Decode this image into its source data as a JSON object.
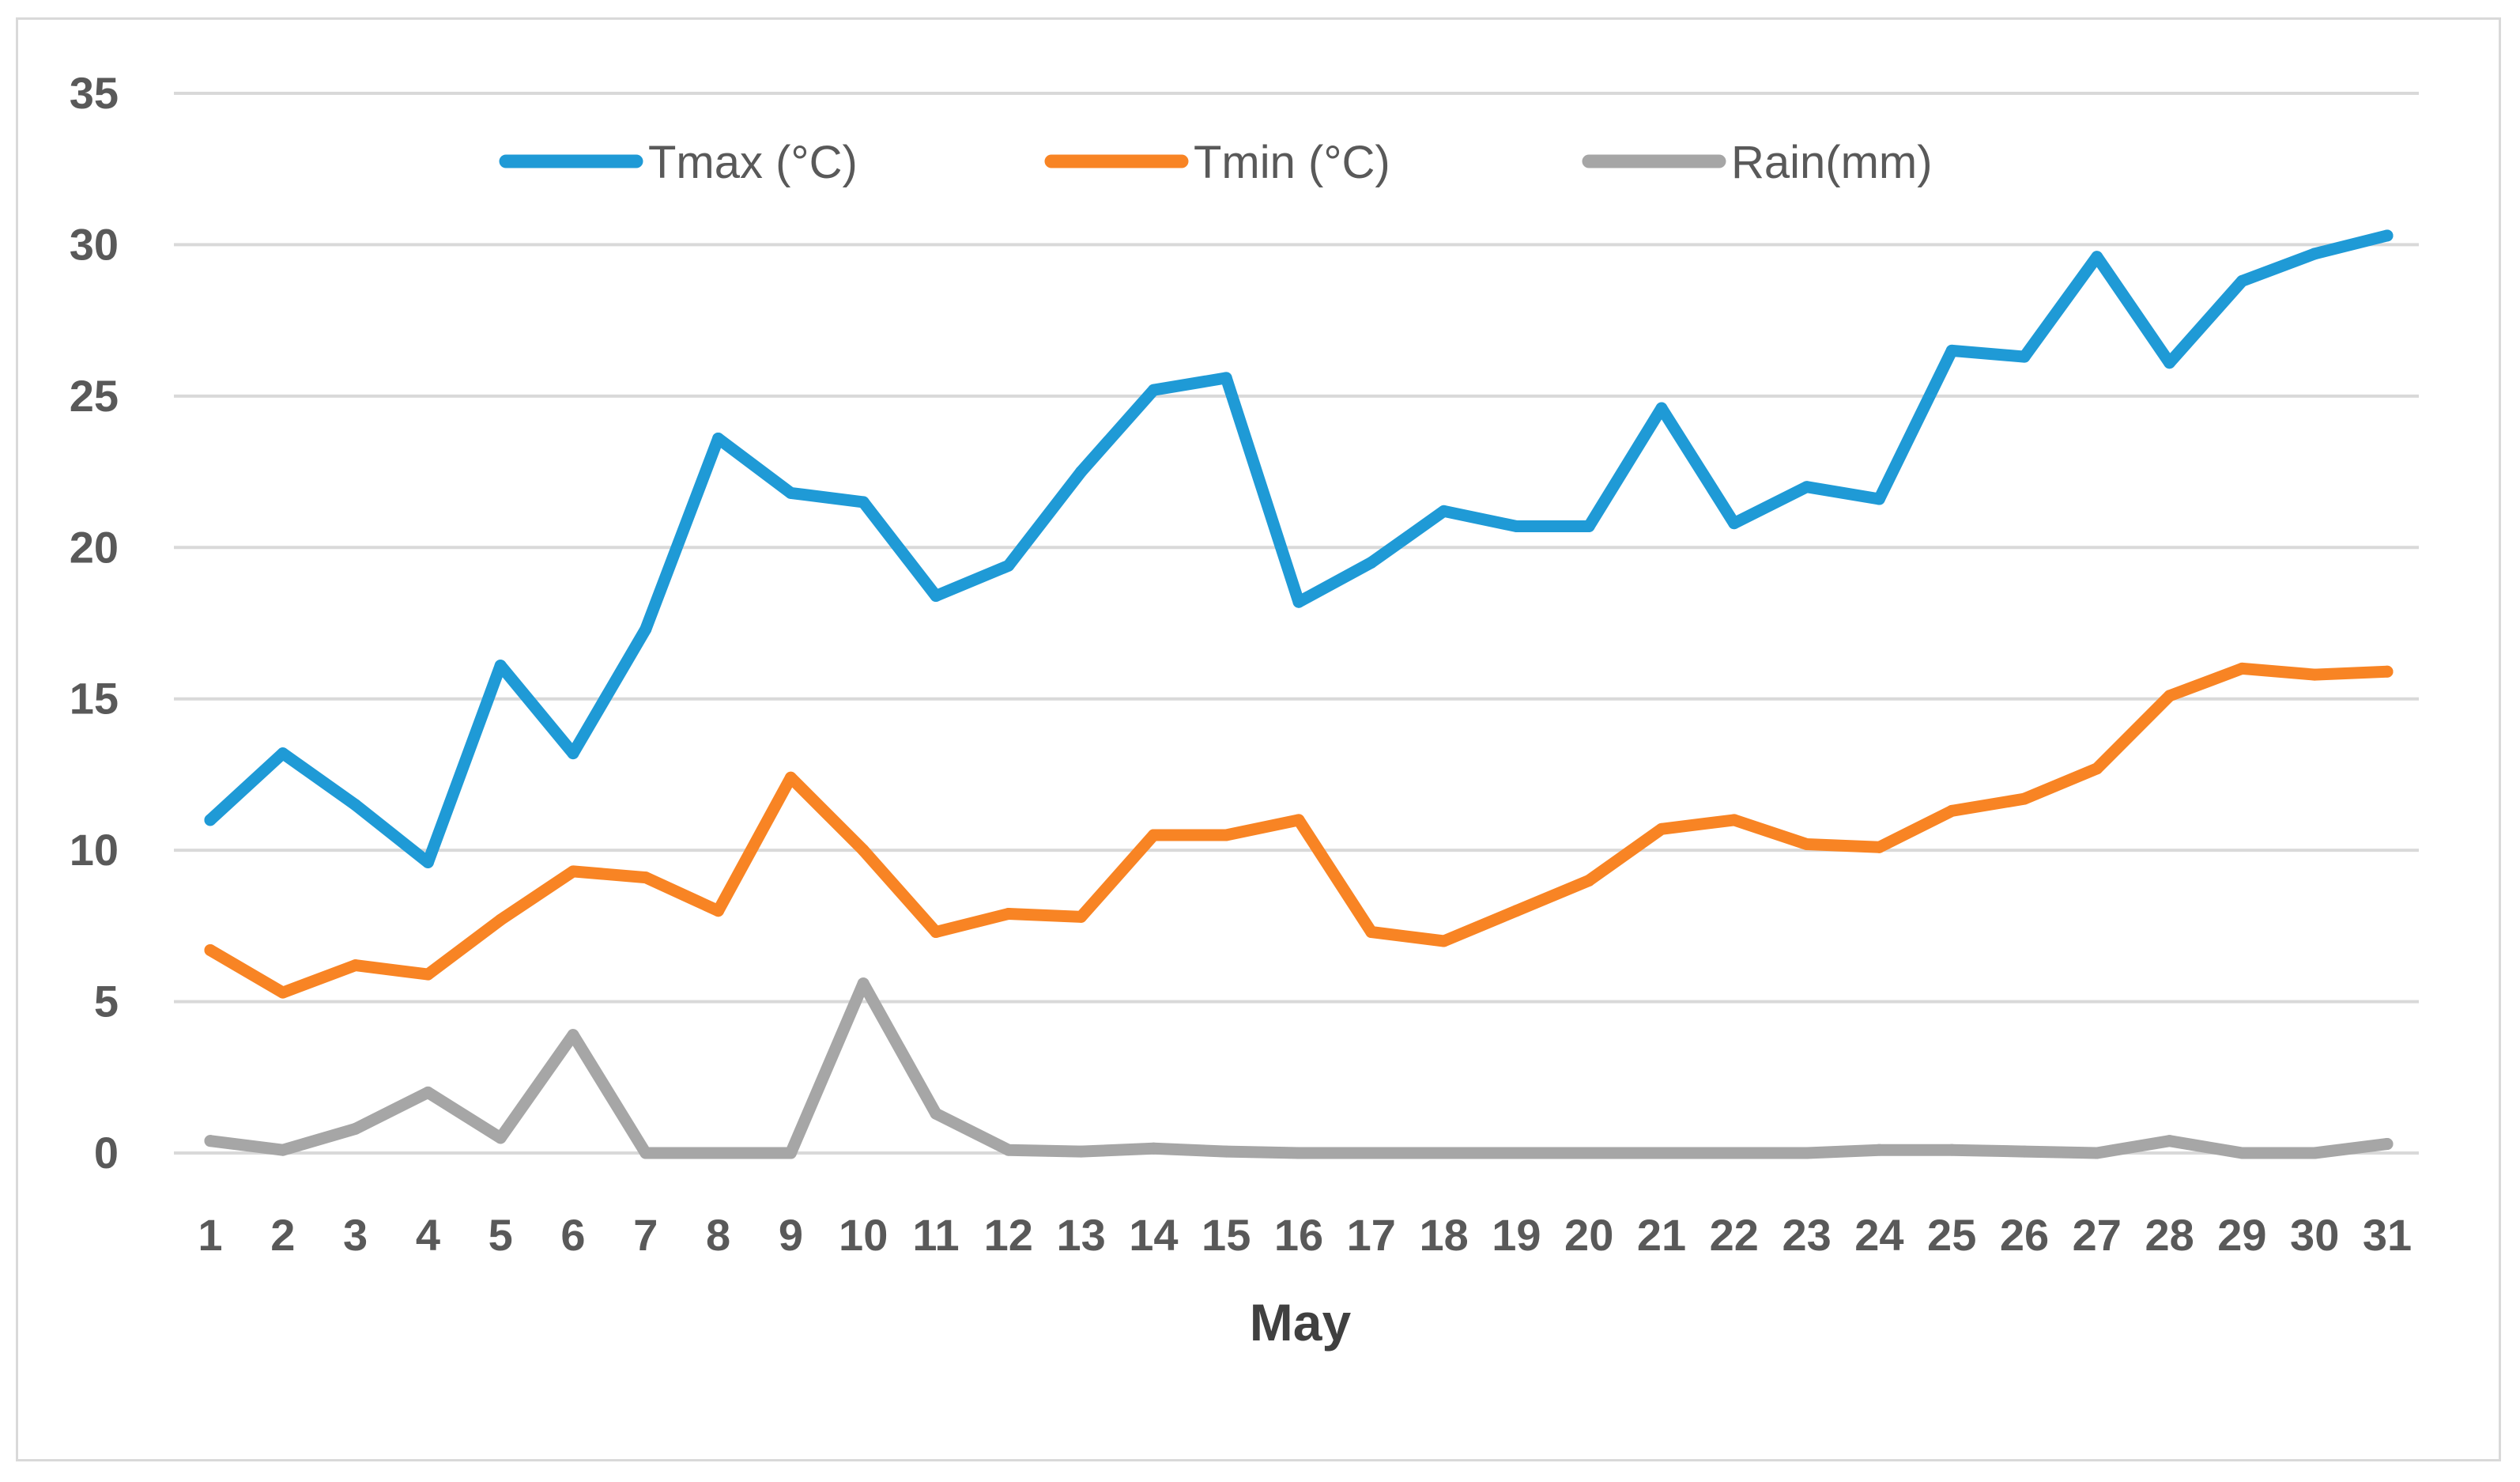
{
  "chart_data": {
    "type": "line",
    "title": "",
    "xlabel": "May",
    "ylabel": "",
    "ylim": [
      0,
      35
    ],
    "yticks": [
      0,
      5,
      10,
      15,
      20,
      25,
      30,
      35
    ],
    "grid": "horizontal",
    "legend_position": "top-center",
    "categories": [
      "1",
      "2",
      "3",
      "4",
      "5",
      "6",
      "7",
      "8",
      "9",
      "10",
      "11",
      "12",
      "13",
      "14",
      "15",
      "16",
      "17",
      "18",
      "19",
      "20",
      "21",
      "22",
      "23",
      "24",
      "25",
      "26",
      "27",
      "28",
      "29",
      "30",
      "31"
    ],
    "series": [
      {
        "name": "Tmax (°C)",
        "color": "#1f9ad6",
        "values": [
          11.0,
          13.2,
          11.5,
          9.6,
          16.1,
          13.2,
          17.3,
          23.6,
          21.8,
          21.5,
          18.4,
          19.4,
          22.5,
          25.2,
          25.6,
          18.2,
          19.5,
          21.2,
          20.7,
          20.7,
          24.6,
          20.8,
          22.0,
          21.6,
          26.5,
          26.3,
          29.6,
          26.1,
          28.8,
          29.7,
          30.3
        ]
      },
      {
        "name": "Tmin (°C)",
        "color": "#f88424",
        "values": [
          6.7,
          5.3,
          6.2,
          5.9,
          7.7,
          9.3,
          9.1,
          8.0,
          12.4,
          10.0,
          7.3,
          7.9,
          7.8,
          10.5,
          10.5,
          11.0,
          7.3,
          7.0,
          8.0,
          9.0,
          10.7,
          11.0,
          10.2,
          10.1,
          11.3,
          11.7,
          12.7,
          15.1,
          16.0,
          15.8,
          15.9
        ]
      },
      {
        "name": "Rain(mm)",
        "color": "#a6a6a6",
        "values": [
          0.4,
          0.1,
          0.8,
          2.0,
          0.5,
          3.9,
          0.0,
          0.0,
          0.0,
          5.6,
          1.3,
          0.1,
          0.05,
          0.15,
          0.05,
          0.0,
          0.0,
          0.0,
          0.0,
          0.0,
          0.0,
          0.0,
          0.0,
          0.1,
          0.1,
          0.05,
          0.0,
          0.4,
          0.0,
          0.0,
          0.3
        ]
      }
    ]
  }
}
